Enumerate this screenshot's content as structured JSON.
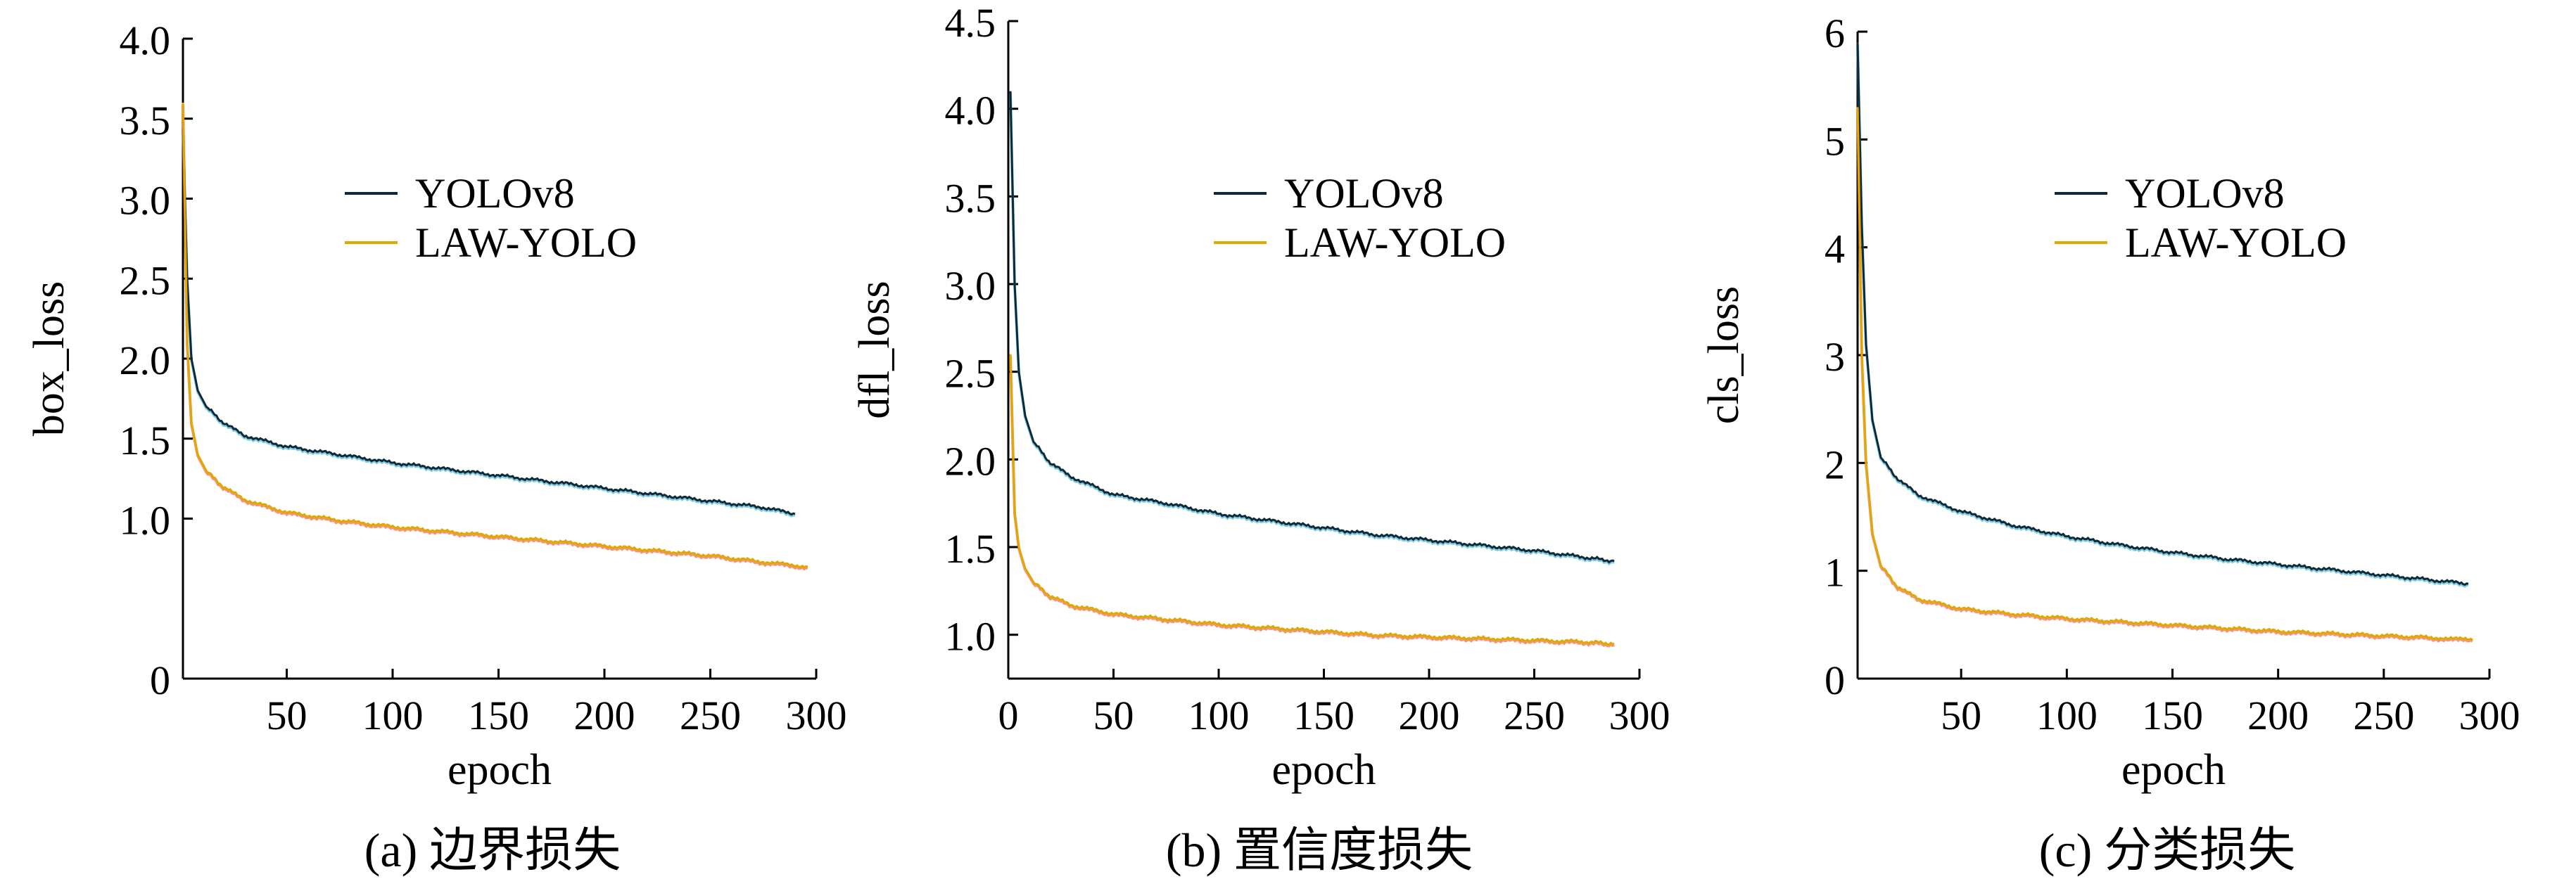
{
  "chart_data": [
    {
      "type": "line",
      "caption": "(a) 边界损失",
      "xlabel": "epoch",
      "ylabel": "box_loss",
      "xlim": [
        1,
        300
      ],
      "ylim": [
        0,
        4.0
      ],
      "xticks": [
        50,
        100,
        150,
        200,
        250,
        300
      ],
      "yticks": [
        0,
        1.0,
        1.5,
        2.0,
        2.5,
        3.0,
        3.5,
        4.0
      ],
      "ytick_labels": [
        "0",
        "1.0",
        "1.5",
        "2.0",
        "2.5",
        "3.0",
        "3.5",
        "4.0"
      ],
      "xtick_labels": [
        "50",
        "100",
        "150",
        "200",
        "250",
        "300"
      ],
      "legend_position": "upper-center",
      "grid": false,
      "series": [
        {
          "name": "YOLOv8",
          "color": "#0d2a3a",
          "accent": "#1aa0c8",
          "points": [
            [
              1,
              3.45
            ],
            [
              3,
              2.5
            ],
            [
              5,
              2.0
            ],
            [
              8,
              1.8
            ],
            [
              12,
              1.7
            ],
            [
              20,
              1.6
            ],
            [
              30,
              1.52
            ],
            [
              50,
              1.45
            ],
            [
              75,
              1.4
            ],
            [
              100,
              1.35
            ],
            [
              125,
              1.31
            ],
            [
              150,
              1.27
            ],
            [
              175,
              1.23
            ],
            [
              200,
              1.19
            ],
            [
              225,
              1.15
            ],
            [
              250,
              1.11
            ],
            [
              275,
              1.07
            ],
            [
              290,
              1.03
            ]
          ]
        },
        {
          "name": "LAW-YOLO",
          "color": "#e0a800",
          "accent": "#e8401a",
          "points": [
            [
              1,
              3.6
            ],
            [
              3,
              2.1
            ],
            [
              5,
              1.6
            ],
            [
              8,
              1.4
            ],
            [
              12,
              1.3
            ],
            [
              20,
              1.2
            ],
            [
              30,
              1.12
            ],
            [
              50,
              1.04
            ],
            [
              75,
              0.99
            ],
            [
              100,
              0.95
            ],
            [
              125,
              0.92
            ],
            [
              150,
              0.89
            ],
            [
              175,
              0.86
            ],
            [
              200,
              0.83
            ],
            [
              225,
              0.8
            ],
            [
              250,
              0.77
            ],
            [
              275,
              0.73
            ],
            [
              296,
              0.7
            ]
          ]
        }
      ]
    },
    {
      "type": "line",
      "caption": "(b) 置信度损失",
      "xlabel": "epoch",
      "ylabel": "dfl_loss",
      "xlim": [
        0,
        300
      ],
      "ylim": [
        0.75,
        4.5
      ],
      "xticks": [
        0,
        50,
        100,
        150,
        200,
        250,
        300
      ],
      "yticks": [
        1.0,
        1.5,
        2.0,
        2.5,
        3.0,
        3.5,
        4.0,
        4.5
      ],
      "ytick_labels": [
        "1.0",
        "1.5",
        "2.0",
        "2.5",
        "3.0",
        "3.5",
        "4.0",
        "4.5"
      ],
      "xtick_labels": [
        "0",
        "50",
        "100",
        "150",
        "200",
        "250",
        "300"
      ],
      "legend_position": "upper-center",
      "grid": false,
      "series": [
        {
          "name": "YOLOv8",
          "color": "#0d2a3a",
          "accent": "#1aa0c8",
          "points": [
            [
              1,
              4.1
            ],
            [
              3,
              3.0
            ],
            [
              5,
              2.5
            ],
            [
              8,
              2.25
            ],
            [
              12,
              2.1
            ],
            [
              20,
              1.98
            ],
            [
              30,
              1.9
            ],
            [
              50,
              1.8
            ],
            [
              75,
              1.75
            ],
            [
              100,
              1.69
            ],
            [
              125,
              1.65
            ],
            [
              150,
              1.61
            ],
            [
              175,
              1.57
            ],
            [
              200,
              1.54
            ],
            [
              225,
              1.51
            ],
            [
              250,
              1.48
            ],
            [
              275,
              1.44
            ],
            [
              288,
              1.42
            ]
          ]
        },
        {
          "name": "LAW-YOLO",
          "color": "#e0a800",
          "accent": "#e8401a",
          "points": [
            [
              1,
              2.6
            ],
            [
              3,
              1.7
            ],
            [
              5,
              1.5
            ],
            [
              8,
              1.38
            ],
            [
              12,
              1.3
            ],
            [
              20,
              1.22
            ],
            [
              30,
              1.17
            ],
            [
              50,
              1.12
            ],
            [
              75,
              1.09
            ],
            [
              100,
              1.06
            ],
            [
              125,
              1.04
            ],
            [
              150,
              1.02
            ],
            [
              175,
              1.0
            ],
            [
              200,
              0.99
            ],
            [
              225,
              0.98
            ],
            [
              250,
              0.97
            ],
            [
              275,
              0.96
            ],
            [
              288,
              0.95
            ]
          ]
        }
      ]
    },
    {
      "type": "line",
      "caption": "(c) 分类损失",
      "xlabel": "epoch",
      "ylabel": "cls_loss",
      "xlim": [
        1,
        300
      ],
      "ylim": [
        0,
        6
      ],
      "xticks": [
        50,
        100,
        150,
        200,
        250,
        300
      ],
      "yticks": [
        0,
        1,
        2,
        3,
        4,
        5,
        6
      ],
      "ytick_labels": [
        "0",
        "1",
        "2",
        "3",
        "4",
        "5",
        "6"
      ],
      "xtick_labels": [
        "50",
        "100",
        "150",
        "200",
        "250",
        "300"
      ],
      "legend_position": "upper-center",
      "grid": false,
      "series": [
        {
          "name": "YOLOv8",
          "color": "#0d2a3a",
          "accent": "#1aa0c8",
          "points": [
            [
              1,
              5.9
            ],
            [
              3,
              4.2
            ],
            [
              5,
              3.1
            ],
            [
              8,
              2.4
            ],
            [
              12,
              2.05
            ],
            [
              20,
              1.85
            ],
            [
              30,
              1.7
            ],
            [
              50,
              1.55
            ],
            [
              75,
              1.42
            ],
            [
              100,
              1.32
            ],
            [
              125,
              1.24
            ],
            [
              150,
              1.17
            ],
            [
              175,
              1.11
            ],
            [
              200,
              1.06
            ],
            [
              225,
              1.01
            ],
            [
              250,
              0.96
            ],
            [
              275,
              0.91
            ],
            [
              290,
              0.88
            ]
          ]
        },
        {
          "name": "LAW-YOLO",
          "color": "#e0a800",
          "accent": "#e8401a",
          "points": [
            [
              1,
              5.3
            ],
            [
              3,
              3.0
            ],
            [
              5,
              2.0
            ],
            [
              8,
              1.35
            ],
            [
              12,
              1.05
            ],
            [
              20,
              0.85
            ],
            [
              30,
              0.74
            ],
            [
              50,
              0.65
            ],
            [
              75,
              0.6
            ],
            [
              100,
              0.56
            ],
            [
              125,
              0.53
            ],
            [
              150,
              0.5
            ],
            [
              175,
              0.47
            ],
            [
              200,
              0.44
            ],
            [
              225,
              0.42
            ],
            [
              250,
              0.4
            ],
            [
              275,
              0.38
            ],
            [
              292,
              0.36
            ]
          ]
        }
      ]
    }
  ]
}
